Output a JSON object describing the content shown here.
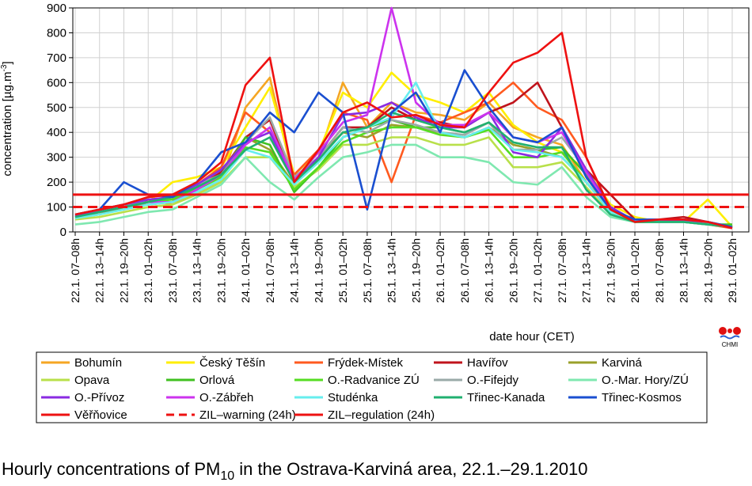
{
  "chart_data": {
    "type": "line",
    "title": {
      "text": "Hourly concentrations of PM",
      "sub": "10",
      "rest": " in the Ostrava-Karviná area, 22.1.–29.1.2010"
    },
    "ylabel": {
      "text": "concentration [µg.m",
      "sup": "-3",
      "rest": "]"
    },
    "xlabel": "date hour (CET)",
    "logo": "CHMI",
    "categories": [
      "22.1. 07–08h",
      "22.1. 13–14h",
      "22.1. 19–20h",
      "23.1. 01–02h",
      "23.1. 07–08h",
      "23.1. 13–14h",
      "23.1. 19–20h",
      "24.1. 01–02h",
      "24.1. 07–08h",
      "24.1. 13–14h",
      "24.1. 19–20h",
      "25.1. 01–02h",
      "25.1. 07–08h",
      "25.1. 13–14h",
      "25.1. 19–20h",
      "26.1. 01–02h",
      "26.1. 07–08h",
      "26.1. 13–14h",
      "26.1. 19–20h",
      "27.1. 01–02h",
      "27.1. 07–08h",
      "27.1. 13–14h",
      "27.1. 19–20h",
      "28.1. 01–02h",
      "28.1. 07–08h",
      "28.1. 13–14h",
      "28.1. 19–20h",
      "29.1. 01–02h"
    ],
    "ylim": [
      0,
      900
    ],
    "yticks": [
      0,
      100,
      200,
      300,
      400,
      500,
      600,
      700,
      800,
      900
    ],
    "grid": true,
    "series": [
      {
        "name": "Bohumín",
        "color": "#f5a623",
        "values": [
          60,
          80,
          90,
          130,
          110,
          160,
          200,
          500,
          620,
          200,
          300,
          600,
          420,
          520,
          480,
          470,
          450,
          520,
          420,
          380,
          350,
          200,
          90,
          50,
          40,
          50,
          40,
          20
        ]
      },
      {
        "name": "Český Těšín",
        "color": "#ffee00",
        "values": [
          55,
          70,
          100,
          120,
          200,
          220,
          260,
          420,
          580,
          230,
          320,
          560,
          500,
          640,
          550,
          520,
          480,
          560,
          430,
          360,
          320,
          250,
          110,
          60,
          40,
          40,
          130,
          20
        ]
      },
      {
        "name": "Frýdek-Místek",
        "color": "#ff5a1f",
        "values": [
          70,
          90,
          110,
          140,
          150,
          190,
          260,
          480,
          400,
          230,
          330,
          480,
          450,
          200,
          470,
          440,
          480,
          520,
          600,
          500,
          450,
          300,
          90,
          40,
          50,
          40,
          30,
          15
        ]
      },
      {
        "name": "Havířov",
        "color": "#c0141c",
        "values": [
          65,
          85,
          100,
          130,
          130,
          180,
          240,
          380,
          450,
          200,
          300,
          420,
          420,
          500,
          450,
          440,
          420,
          480,
          520,
          600,
          420,
          250,
          150,
          50,
          50,
          60,
          40,
          15
        ]
      },
      {
        "name": "Karviná",
        "color": "#9aa02a",
        "values": [
          60,
          70,
          100,
          110,
          120,
          170,
          230,
          380,
          330,
          190,
          300,
          400,
          380,
          430,
          420,
          400,
          380,
          420,
          350,
          330,
          300,
          200,
          80,
          40,
          50,
          40,
          30,
          20
        ]
      },
      {
        "name": "Opava",
        "color": "#b8e04a",
        "values": [
          50,
          60,
          80,
          100,
          110,
          150,
          200,
          300,
          300,
          180,
          250,
          350,
          350,
          380,
          380,
          350,
          350,
          380,
          260,
          260,
          280,
          180,
          70,
          40,
          40,
          40,
          30,
          25
        ]
      },
      {
        "name": "Orlová",
        "color": "#40c020",
        "values": [
          60,
          90,
          110,
          130,
          130,
          180,
          230,
          380,
          350,
          160,
          260,
          380,
          420,
          450,
          420,
          420,
          400,
          440,
          330,
          330,
          340,
          230,
          90,
          40,
          40,
          50,
          30,
          30
        ]
      },
      {
        "name": "O.-Radvanice ZÚ",
        "color": "#55dd22",
        "values": [
          55,
          80,
          100,
          120,
          130,
          170,
          220,
          340,
          320,
          170,
          260,
          360,
          400,
          420,
          420,
          390,
          380,
          410,
          300,
          300,
          320,
          200,
          80,
          50,
          45,
          50,
          30,
          25
        ]
      },
      {
        "name": "O.-Fifejdy",
        "color": "#9aaaa8",
        "values": [
          60,
          90,
          110,
          120,
          140,
          190,
          230,
          360,
          460,
          220,
          300,
          420,
          400,
          450,
          430,
          400,
          390,
          440,
          330,
          330,
          380,
          250,
          90,
          50,
          50,
          40,
          30,
          20
        ]
      },
      {
        "name": "O.-Mar. Hory/ZÚ",
        "color": "#7fe8b0",
        "values": [
          30,
          40,
          60,
          80,
          90,
          140,
          190,
          300,
          200,
          130,
          220,
          300,
          320,
          350,
          350,
          300,
          300,
          280,
          200,
          190,
          260,
          140,
          60,
          40,
          40,
          40,
          30,
          20
        ]
      },
      {
        "name": "O.-Přívoz",
        "color": "#8a2be2",
        "values": [
          65,
          90,
          110,
          130,
          140,
          190,
          250,
          360,
          400,
          200,
          300,
          470,
          480,
          520,
          460,
          420,
          420,
          480,
          320,
          300,
          420,
          250,
          100,
          45,
          50,
          50,
          40,
          20
        ]
      },
      {
        "name": "O.-Zábřeh",
        "color": "#cc33ee",
        "values": [
          60,
          80,
          100,
          120,
          120,
          170,
          230,
          350,
          420,
          210,
          320,
          440,
          470,
          900,
          520,
          430,
          430,
          480,
          380,
          360,
          400,
          240,
          90,
          45,
          50,
          45,
          40,
          15
        ]
      },
      {
        "name": "Studénka",
        "color": "#66eeee",
        "values": [
          55,
          70,
          90,
          110,
          120,
          160,
          210,
          330,
          300,
          190,
          280,
          380,
          420,
          460,
          600,
          400,
          380,
          420,
          330,
          320,
          300,
          200,
          80,
          45,
          40,
          40,
          30,
          20
        ]
      },
      {
        "name": "Třinec-Kanada",
        "color": "#20b070",
        "values": [
          60,
          80,
          100,
          120,
          140,
          180,
          230,
          330,
          380,
          200,
          290,
          400,
          420,
          480,
          450,
          420,
          400,
          440,
          360,
          340,
          340,
          170,
          70,
          40,
          40,
          40,
          30,
          20
        ]
      },
      {
        "name": "Třinec-Kosmos",
        "color": "#1a4fd0",
        "values": [
          70,
          90,
          200,
          150,
          140,
          200,
          320,
          360,
          480,
          400,
          560,
          480,
          90,
          480,
          560,
          400,
          650,
          500,
          380,
          360,
          420,
          220,
          90,
          50,
          50,
          50,
          40,
          20
        ]
      },
      {
        "name": "Věřňovice",
        "color": "#ee1111",
        "values": [
          70,
          90,
          110,
          140,
          150,
          200,
          280,
          590,
          700,
          200,
          330,
          480,
          520,
          460,
          470,
          430,
          420,
          560,
          680,
          720,
          800,
          300,
          90,
          40,
          50,
          50,
          40,
          15
        ]
      }
    ],
    "reference_lines": [
      {
        "name": "ZIL–warning (24h)",
        "value": 100,
        "color": "#ee1111",
        "dashed": true
      },
      {
        "name": "ZIL–regulation (24h)",
        "value": 150,
        "color": "#ee1111",
        "dashed": false
      }
    ]
  }
}
